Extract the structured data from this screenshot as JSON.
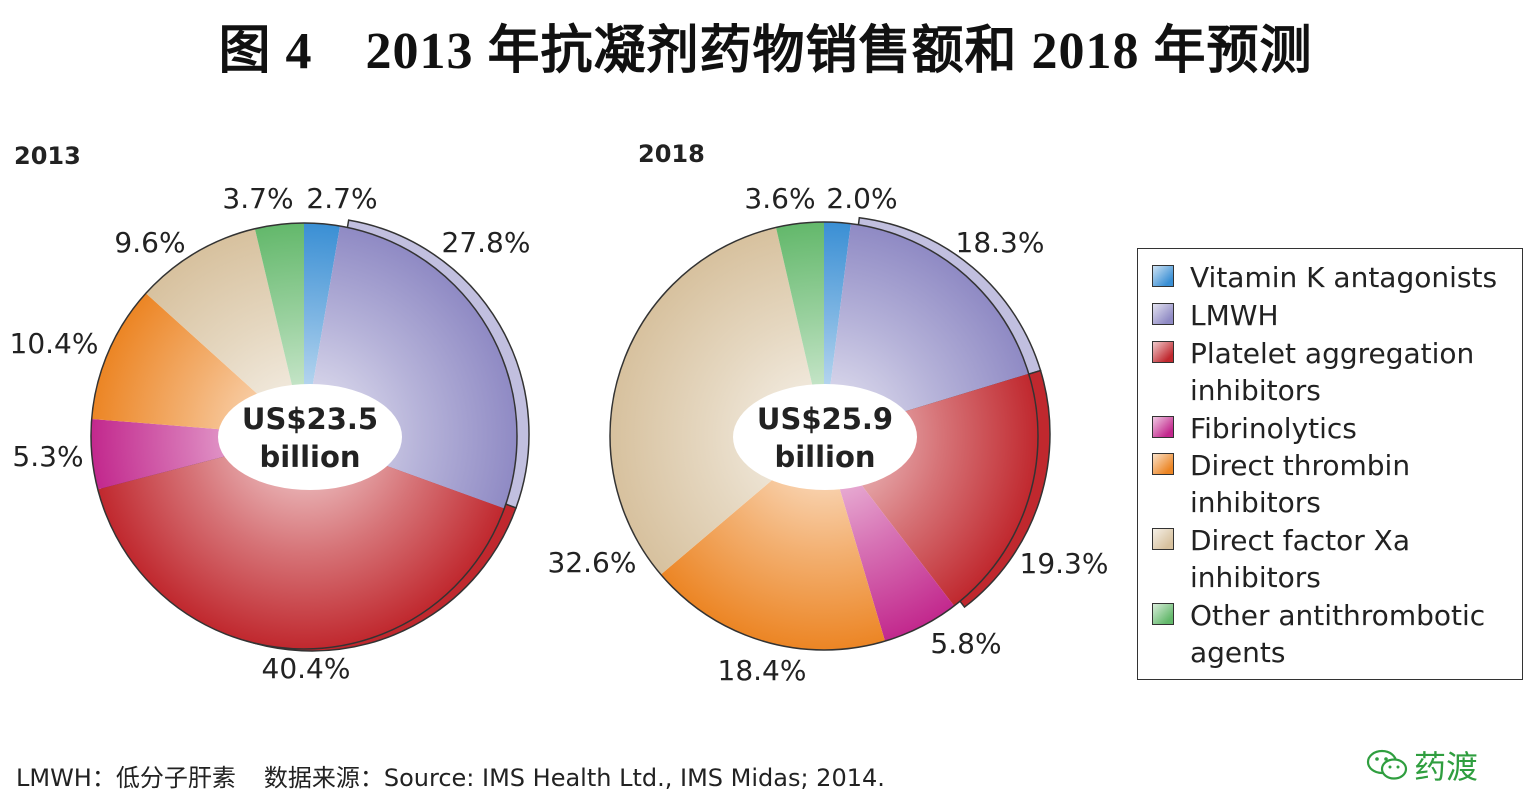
{
  "title": "图 4　2013 年抗凝剂药物销售额和 2018 年预测",
  "colors": {
    "vka": "#3a8fd4",
    "lmwh": "#8f8ac4",
    "platelet": "#c0282e",
    "fibrinolytics": "#c2288d",
    "dti": "#ec8524",
    "dfxa": "#d7c19e",
    "other": "#63b86b"
  },
  "chart_data": [
    {
      "type": "pie",
      "title": "2013",
      "center_label": [
        "US$23.5",
        "billion"
      ],
      "categories": [
        "Vitamin K antagonists",
        "LMWH",
        "Platelet aggregation inhibitors",
        "Fibrinolytics",
        "Direct thrombin inhibitors",
        "Direct factor Xa inhibitors",
        "Other antithrombotic agents"
      ],
      "values": [
        2.7,
        27.8,
        40.4,
        5.3,
        10.4,
        9.6,
        3.7
      ],
      "labels": [
        "2.7%",
        "27.8%",
        "40.4%",
        "5.3%",
        "10.4%",
        "9.6%",
        "3.7%"
      ]
    },
    {
      "type": "pie",
      "title": "2018",
      "center_label": [
        "US$25.9",
        "billion"
      ],
      "categories": [
        "Vitamin K antagonists",
        "LMWH",
        "Platelet aggregation inhibitors",
        "Fibrinolytics",
        "Direct thrombin inhibitors",
        "Direct factor Xa inhibitors",
        "Other antithrombotic agents"
      ],
      "values": [
        2.0,
        18.3,
        19.3,
        5.8,
        18.4,
        32.6,
        3.6
      ],
      "labels": [
        "2.0%",
        "18.3%",
        "19.3%",
        "5.8%",
        "18.4%",
        "32.6%",
        "3.6%"
      ]
    }
  ],
  "legend": [
    {
      "key": "vka",
      "lines": [
        "Vitamin K antagonists"
      ]
    },
    {
      "key": "lmwh",
      "lines": [
        "LMWH"
      ]
    },
    {
      "key": "platelet",
      "lines": [
        "Platelet aggregation",
        "inhibitors"
      ]
    },
    {
      "key": "fibrinolytics",
      "lines": [
        "Fibrinolytics"
      ]
    },
    {
      "key": "dti",
      "lines": [
        "Direct thrombin",
        "inhibitors"
      ]
    },
    {
      "key": "dfxa",
      "lines": [
        "Direct factor Xa",
        "inhibitors"
      ]
    },
    {
      "key": "other",
      "lines": [
        "Other antithrombotic",
        "agents"
      ]
    }
  ],
  "footnote": {
    "abbr": "LMWH：低分子肝素",
    "source": "数据来源：Source: IMS Health Ltd., IMS Midas; 2014."
  },
  "watermark": "药渡"
}
